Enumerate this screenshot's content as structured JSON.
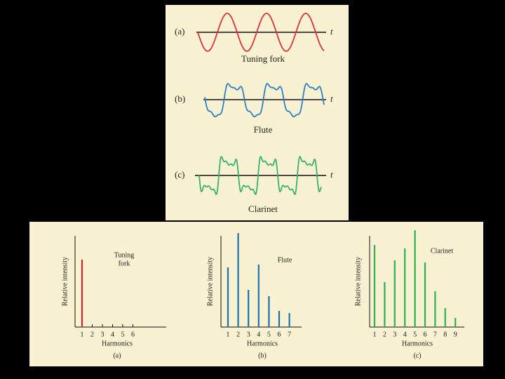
{
  "waveforms": [
    {
      "label": "(a)",
      "axis": "t",
      "name": "Tuning fork"
    },
    {
      "label": "(b)",
      "axis": "t",
      "name": "Flute"
    },
    {
      "label": "(c)",
      "axis": "t",
      "name": "Clarinet"
    }
  ],
  "chart_data": [
    {
      "type": "bar",
      "title_lines": [
        "Tuning",
        "fork"
      ],
      "xlabel": "Harmonics",
      "ylabel": "Relative intensity",
      "caption": "(a)",
      "categories": [
        "1",
        "2",
        "3",
        "4",
        "5",
        "6"
      ],
      "values": [
        96,
        0,
        0,
        0,
        0,
        0
      ],
      "color": "#c8262e",
      "ylim": [
        0,
        140
      ]
    },
    {
      "type": "bar",
      "title_lines": [
        "Flute"
      ],
      "xlabel": "Harmonics",
      "ylabel": "Relative intensity",
      "caption": "(b)",
      "categories": [
        "1",
        "2",
        "3",
        "4",
        "5",
        "6",
        "7"
      ],
      "values": [
        85,
        134,
        53,
        89,
        44,
        23,
        20
      ],
      "color": "#1f6fae",
      "ylim": [
        0,
        140
      ]
    },
    {
      "type": "bar",
      "title_lines": [
        "Clarinet"
      ],
      "xlabel": "Harmonics",
      "ylabel": "Relative intensity",
      "caption": "(c)",
      "categories": [
        "1",
        "2",
        "3",
        "4",
        "5",
        "6",
        "7",
        "8",
        "9"
      ],
      "values": [
        117,
        64,
        95,
        112,
        138,
        92,
        51,
        27,
        13
      ],
      "color": "#2bb24c",
      "ylim": [
        0,
        140
      ]
    }
  ]
}
